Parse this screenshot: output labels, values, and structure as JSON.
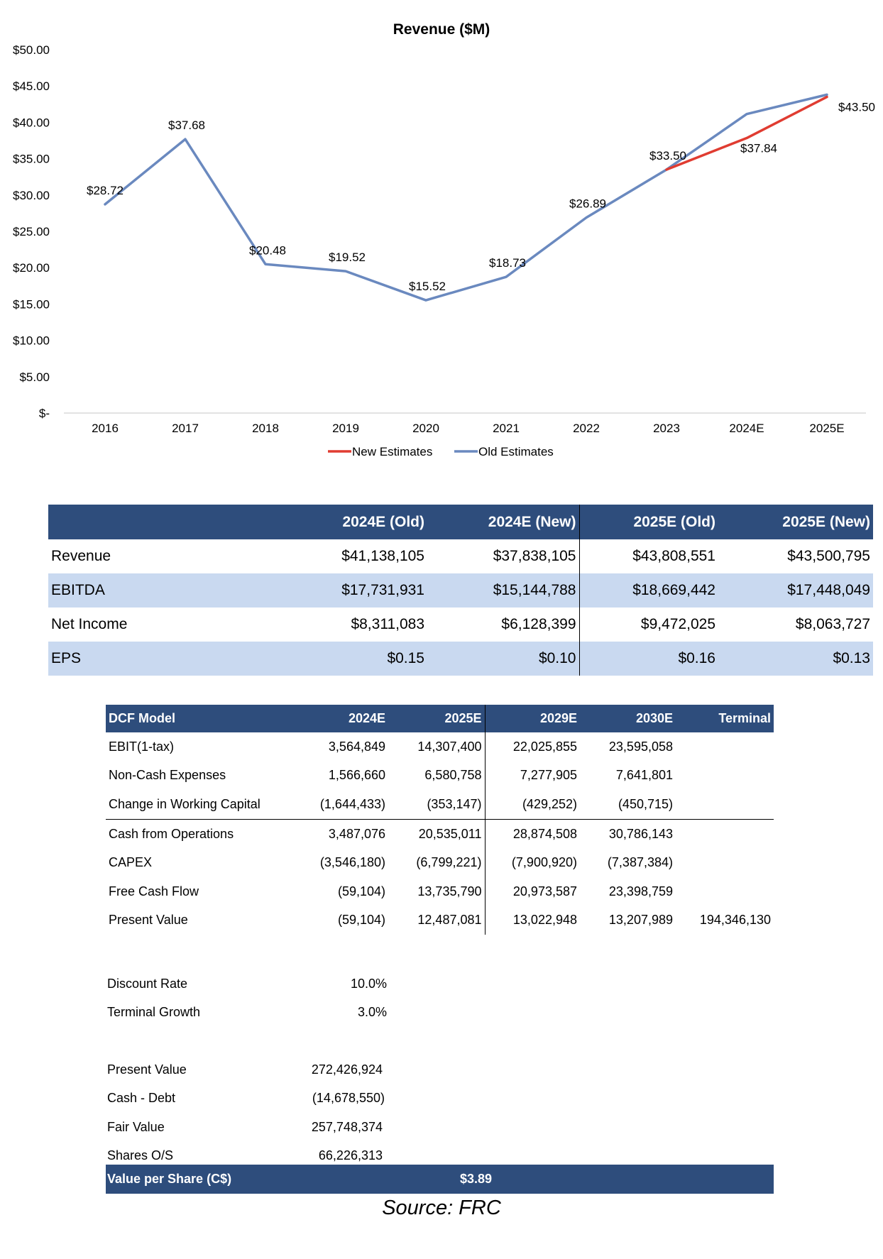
{
  "chart_data": {
    "type": "line",
    "title": "Revenue ($M)",
    "categories": [
      "2016",
      "2017",
      "2018",
      "2019",
      "2020",
      "2021",
      "2022",
      "2023",
      "2024E",
      "2025E"
    ],
    "y_ticks": [
      "$50.00",
      "$45.00",
      "$40.00",
      "$35.00",
      "$30.00",
      "$25.00",
      "$20.00",
      "$15.00",
      "$10.00",
      "$5.00",
      "$-"
    ],
    "ylim": [
      0,
      50
    ],
    "series": [
      {
        "name": "New Estimates",
        "color": "#e03c31",
        "values": [
          null,
          null,
          null,
          null,
          null,
          null,
          null,
          33.5,
          37.84,
          43.5
        ]
      },
      {
        "name": "Old Estimates",
        "color": "#6a89bf",
        "values": [
          28.72,
          37.68,
          20.48,
          19.52,
          15.52,
          18.73,
          26.89,
          33.5,
          41.14,
          43.81
        ]
      }
    ],
    "data_labels": [
      "$28.72",
      "$37.68",
      "$20.48",
      "$19.52",
      "$15.52",
      "$18.73",
      "$26.89",
      "$33.50",
      "$37.84",
      "$43.50"
    ],
    "legend": "bottom",
    "grid": false
  },
  "comparison": {
    "headers": [
      "",
      "2024E (Old)",
      "2024E (New)",
      "2025E (Old)",
      "2025E (New)"
    ],
    "rows": [
      [
        "Revenue",
        "$41,138,105",
        "$37,838,105",
        "$43,808,551",
        "$43,500,795"
      ],
      [
        "EBITDA",
        "$17,731,931",
        "$15,144,788",
        "$18,669,442",
        "$17,448,049"
      ],
      [
        "Net Income",
        "$8,311,083",
        "$6,128,399",
        "$9,472,025",
        "$8,063,727"
      ],
      [
        "EPS",
        "$0.15",
        "$0.10",
        "$0.16",
        "$0.13"
      ]
    ]
  },
  "dcf": {
    "headers": [
      "DCF Model",
      "2024E",
      "2025E",
      "2029E",
      "2030E",
      "Terminal"
    ],
    "rows": [
      [
        "EBIT(1-tax)",
        "3,564,849",
        "14,307,400",
        "22,025,855",
        "23,595,058",
        ""
      ],
      [
        "Non-Cash Expenses",
        "1,566,660",
        "6,580,758",
        "7,277,905",
        "7,641,801",
        ""
      ],
      [
        "Change in Working Capital",
        "(1,644,433)",
        "(353,147)",
        "(429,252)",
        "(450,715)",
        ""
      ],
      [
        "Cash from Operations",
        "3,487,076",
        "20,535,011",
        "28,874,508",
        "30,786,143",
        ""
      ],
      [
        "CAPEX",
        "(3,546,180)",
        "(6,799,221)",
        "(7,900,920)",
        "(7,387,384)",
        ""
      ],
      [
        "Free Cash Flow",
        "(59,104)",
        "13,735,790",
        "20,973,587",
        "23,398,759",
        ""
      ],
      [
        "Present Value",
        "(59,104)",
        "12,487,081",
        "13,022,948",
        "13,207,989",
        "194,346,130"
      ]
    ]
  },
  "assumptions": [
    {
      "label": "Discount Rate",
      "value": "10.0%"
    },
    {
      "label": "Terminal Growth",
      "value": "3.0%"
    }
  ],
  "valuation": [
    {
      "label": "Present Value",
      "value": "272,426,924"
    },
    {
      "label": "Cash - Debt",
      "value": "(14,678,550)"
    },
    {
      "label": "Fair Value",
      "value": "257,748,374"
    },
    {
      "label": "Shares O/S",
      "value": "66,226,313"
    }
  ],
  "value_per_share": {
    "label": "Value per Share (C$)",
    "value": "$3.89"
  },
  "source": "Source: FRC"
}
